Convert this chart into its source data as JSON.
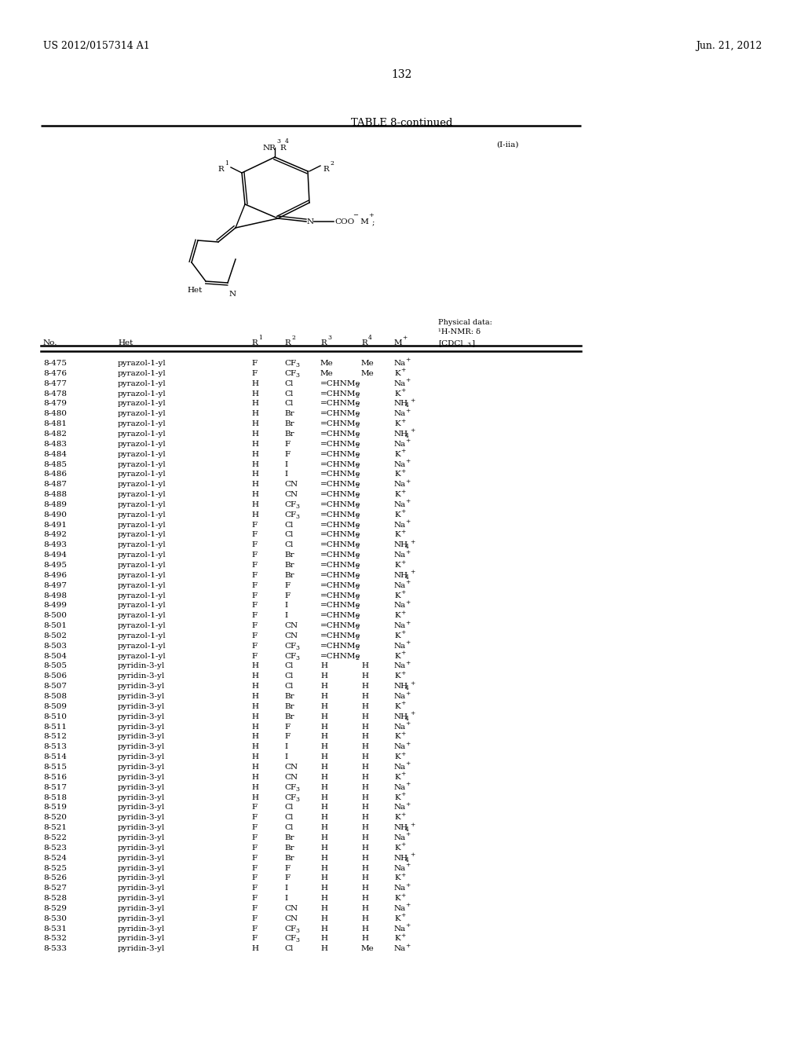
{
  "patent_number": "US 2012/0157314 A1",
  "date": "Jun. 21, 2012",
  "page_number": "132",
  "table_title": "TABLE 8-continued",
  "compound_label": "(I-iia)",
  "bg_color": "#ffffff",
  "text_color": "#000000",
  "font_size": 7.5,
  "header_font_size": 7.5,
  "title_font_size": 9.5,
  "patent_font_size": 9.0,
  "rows": [
    [
      "8-475",
      "pyrazol-1-yl",
      "F",
      "CF3",
      "Me",
      "Me",
      "Na+"
    ],
    [
      "8-476",
      "pyrazol-1-yl",
      "F",
      "CF3",
      "Me",
      "Me",
      "K+"
    ],
    [
      "8-477",
      "pyrazol-1-yl",
      "H",
      "Cl",
      "=CHNMe2",
      "",
      "Na+"
    ],
    [
      "8-478",
      "pyrazol-1-yl",
      "H",
      "Cl",
      "=CHNMe2",
      "",
      "K+"
    ],
    [
      "8-479",
      "pyrazol-1-yl",
      "H",
      "Cl",
      "=CHNMe2",
      "",
      "NH4+"
    ],
    [
      "8-480",
      "pyrazol-1-yl",
      "H",
      "Br",
      "=CHNMe2",
      "",
      "Na+"
    ],
    [
      "8-481",
      "pyrazol-1-yl",
      "H",
      "Br",
      "=CHNMe2",
      "",
      "K+"
    ],
    [
      "8-482",
      "pyrazol-1-yl",
      "H",
      "Br",
      "=CHNMe2",
      "",
      "NH4+"
    ],
    [
      "8-483",
      "pyrazol-1-yl",
      "H",
      "F",
      "=CHNMe2",
      "",
      "Na+"
    ],
    [
      "8-484",
      "pyrazol-1-yl",
      "H",
      "F",
      "=CHNMe2",
      "",
      "K+"
    ],
    [
      "8-485",
      "pyrazol-1-yl",
      "H",
      "I",
      "=CHNMe2",
      "",
      "Na+"
    ],
    [
      "8-486",
      "pyrazol-1-yl",
      "H",
      "I",
      "=CHNMe2",
      "",
      "K+"
    ],
    [
      "8-487",
      "pyrazol-1-yl",
      "H",
      "CN",
      "=CHNMe2",
      "",
      "Na+"
    ],
    [
      "8-488",
      "pyrazol-1-yl",
      "H",
      "CN",
      "=CHNMe2",
      "",
      "K+"
    ],
    [
      "8-489",
      "pyrazol-1-yl",
      "H",
      "CF3",
      "=CHNMe2",
      "",
      "Na+"
    ],
    [
      "8-490",
      "pyrazol-1-yl",
      "H",
      "CF3",
      "=CHNMe2",
      "",
      "K+"
    ],
    [
      "8-491",
      "pyrazol-1-yl",
      "F",
      "Cl",
      "=CHNMe2",
      "",
      "Na+"
    ],
    [
      "8-492",
      "pyrazol-1-yl",
      "F",
      "Cl",
      "=CHNMe2",
      "",
      "K+"
    ],
    [
      "8-493",
      "pyrazol-1-yl",
      "F",
      "Cl",
      "=CHNMe2",
      "",
      "NH4+"
    ],
    [
      "8-494",
      "pyrazol-1-yl",
      "F",
      "Br",
      "=CHNMe2",
      "",
      "Na+"
    ],
    [
      "8-495",
      "pyrazol-1-yl",
      "F",
      "Br",
      "=CHNMe2",
      "",
      "K+"
    ],
    [
      "8-496",
      "pyrazol-1-yl",
      "F",
      "Br",
      "=CHNMe2",
      "",
      "NH4+"
    ],
    [
      "8-497",
      "pyrazol-1-yl",
      "F",
      "F",
      "=CHNMe2",
      "",
      "Na+"
    ],
    [
      "8-498",
      "pyrazol-1-yl",
      "F",
      "F",
      "=CHNMe2",
      "",
      "K+"
    ],
    [
      "8-499",
      "pyrazol-1-yl",
      "F",
      "I",
      "=CHNMe2",
      "",
      "Na+"
    ],
    [
      "8-500",
      "pyrazol-1-yl",
      "F",
      "I",
      "=CHNMe2",
      "",
      "K+"
    ],
    [
      "8-501",
      "pyrazol-1-yl",
      "F",
      "CN",
      "=CHNMe2",
      "",
      "Na+"
    ],
    [
      "8-502",
      "pyrazol-1-yl",
      "F",
      "CN",
      "=CHNMe2",
      "",
      "K+"
    ],
    [
      "8-503",
      "pyrazol-1-yl",
      "F",
      "CF3",
      "=CHNMe2",
      "",
      "Na+"
    ],
    [
      "8-504",
      "pyrazol-1-yl",
      "F",
      "CF3",
      "=CHNMe2",
      "",
      "K+"
    ],
    [
      "8-505",
      "pyridin-3-yl",
      "H",
      "Cl",
      "H",
      "H",
      "Na+"
    ],
    [
      "8-506",
      "pyridin-3-yl",
      "H",
      "Cl",
      "H",
      "H",
      "K+"
    ],
    [
      "8-507",
      "pyridin-3-yl",
      "H",
      "Cl",
      "H",
      "H",
      "NH4+"
    ],
    [
      "8-508",
      "pyridin-3-yl",
      "H",
      "Br",
      "H",
      "H",
      "Na+"
    ],
    [
      "8-509",
      "pyridin-3-yl",
      "H",
      "Br",
      "H",
      "H",
      "K+"
    ],
    [
      "8-510",
      "pyridin-3-yl",
      "H",
      "Br",
      "H",
      "H",
      "NH4+"
    ],
    [
      "8-511",
      "pyridin-3-yl",
      "H",
      "F",
      "H",
      "H",
      "Na+"
    ],
    [
      "8-512",
      "pyridin-3-yl",
      "H",
      "F",
      "H",
      "H",
      "K+"
    ],
    [
      "8-513",
      "pyridin-3-yl",
      "H",
      "I",
      "H",
      "H",
      "Na+"
    ],
    [
      "8-514",
      "pyridin-3-yl",
      "H",
      "I",
      "H",
      "H",
      "K+"
    ],
    [
      "8-515",
      "pyridin-3-yl",
      "H",
      "CN",
      "H",
      "H",
      "Na+"
    ],
    [
      "8-516",
      "pyridin-3-yl",
      "H",
      "CN",
      "H",
      "H",
      "K+"
    ],
    [
      "8-517",
      "pyridin-3-yl",
      "H",
      "CF3",
      "H",
      "H",
      "Na+"
    ],
    [
      "8-518",
      "pyridin-3-yl",
      "H",
      "CF3",
      "H",
      "H",
      "K+"
    ],
    [
      "8-519",
      "pyridin-3-yl",
      "F",
      "Cl",
      "H",
      "H",
      "Na+"
    ],
    [
      "8-520",
      "pyridin-3-yl",
      "F",
      "Cl",
      "H",
      "H",
      "K+"
    ],
    [
      "8-521",
      "pyridin-3-yl",
      "F",
      "Cl",
      "H",
      "H",
      "NH4+"
    ],
    [
      "8-522",
      "pyridin-3-yl",
      "F",
      "Br",
      "H",
      "H",
      "Na+"
    ],
    [
      "8-523",
      "pyridin-3-yl",
      "F",
      "Br",
      "H",
      "H",
      "K+"
    ],
    [
      "8-524",
      "pyridin-3-yl",
      "F",
      "Br",
      "H",
      "H",
      "NH4+"
    ],
    [
      "8-525",
      "pyridin-3-yl",
      "F",
      "F",
      "H",
      "H",
      "Na+"
    ],
    [
      "8-526",
      "pyridin-3-yl",
      "F",
      "F",
      "H",
      "H",
      "K+"
    ],
    [
      "8-527",
      "pyridin-3-yl",
      "F",
      "I",
      "H",
      "H",
      "Na+"
    ],
    [
      "8-528",
      "pyridin-3-yl",
      "F",
      "I",
      "H",
      "H",
      "K+"
    ],
    [
      "8-529",
      "pyridin-3-yl",
      "F",
      "CN",
      "H",
      "H",
      "Na+"
    ],
    [
      "8-530",
      "pyridin-3-yl",
      "F",
      "CN",
      "H",
      "H",
      "K+"
    ],
    [
      "8-531",
      "pyridin-3-yl",
      "F",
      "CF3",
      "H",
      "H",
      "Na+"
    ],
    [
      "8-532",
      "pyridin-3-yl",
      "F",
      "CF3",
      "H",
      "H",
      "K+"
    ],
    [
      "8-533",
      "pyridin-3-yl",
      "H",
      "Cl",
      "H",
      "Me",
      "Na+"
    ]
  ]
}
